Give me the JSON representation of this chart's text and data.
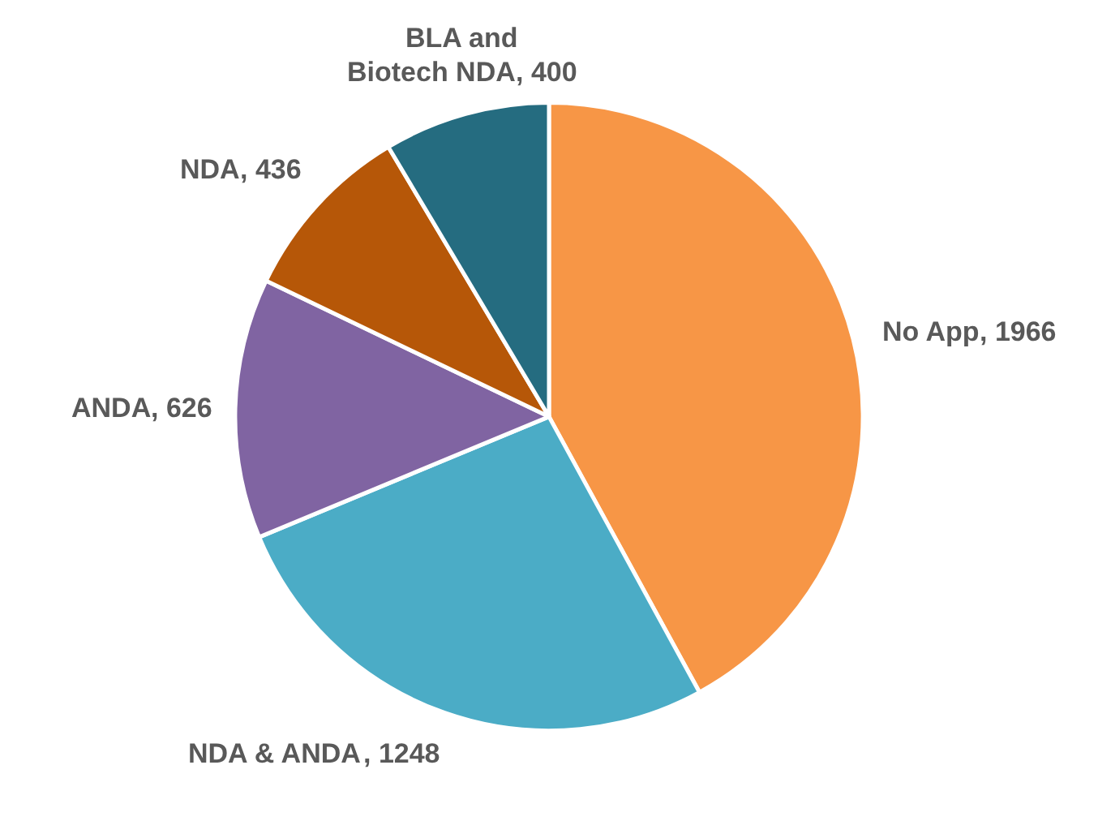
{
  "chart_data": {
    "type": "pie",
    "categories": [
      "No App",
      "NDA & ANDA",
      "ANDA",
      "NDA",
      "BLA and Biotech NDA"
    ],
    "values": [
      1966,
      1248,
      626,
      436,
      400
    ],
    "colors": [
      "#f79646",
      "#4bacc6",
      "#8064a2",
      "#b65708",
      "#256c80"
    ],
    "value_labels": [
      ", 1966",
      ", 1248",
      ", 626",
      ", 436",
      ", 400"
    ],
    "legend": false
  }
}
